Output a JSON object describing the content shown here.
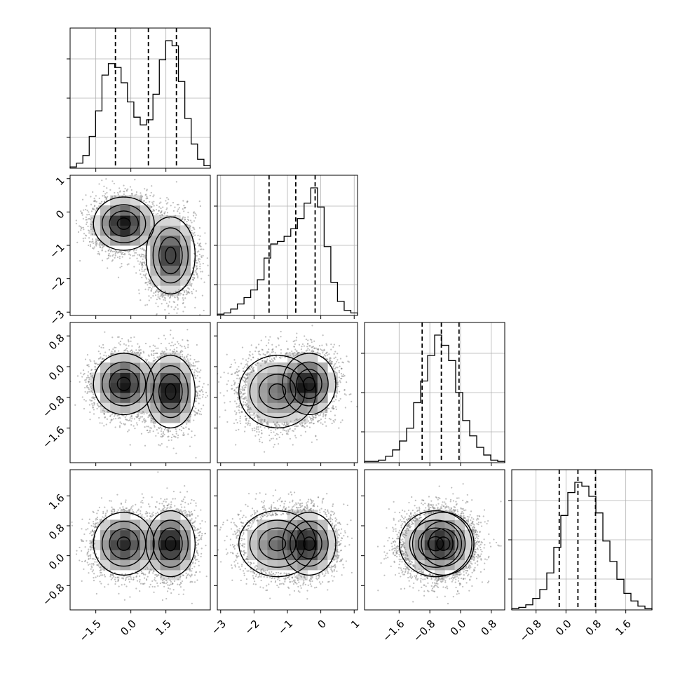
{
  "chart_data": {
    "type": "corner",
    "grid": true,
    "colors": {
      "hist": "#000000",
      "quantile": "#000000",
      "density": "#000000",
      "grid": "#b0b0b0",
      "points": "#7f7f7f"
    },
    "params": [
      {
        "range": [
          -2.6,
          3.4
        ],
        "xticks": [
          "-1.5",
          "0.0",
          "1.5"
        ],
        "yticks": [],
        "tick_values": [
          -1.5,
          0.0,
          1.5
        ],
        "quantiles": [
          -0.66,
          0.75,
          1.95
        ]
      },
      {
        "range": [
          -3.1,
          1.1
        ],
        "xticks": [
          "-3",
          "-2",
          "-1",
          "0",
          "1"
        ],
        "yticks": [
          "1",
          "0",
          "-1",
          "-2",
          "-3"
        ],
        "tick_values": [
          -3,
          -2,
          -1,
          0,
          1
        ],
        "quantiles": [
          -1.55,
          -0.75,
          -0.17
        ]
      },
      {
        "range": [
          -2.5,
          1.15
        ],
        "xticks": [
          "-1.6",
          "-0.8",
          "0.0",
          "0.8"
        ],
        "yticks": [
          "0.8",
          "0.0",
          "-0.8",
          "-1.6"
        ],
        "tick_values": [
          -1.6,
          -0.8,
          0.0,
          0.8
        ],
        "quantiles": [
          -1.0,
          -0.5,
          -0.04
        ]
      },
      {
        "range": [
          -1.45,
          2.3
        ],
        "xticks": [
          "-0.8",
          "0.0",
          "0.8",
          "1.6"
        ],
        "yticks": [
          "1.6",
          "0.8",
          "0.0",
          "-0.8"
        ],
        "tick_values": [
          -0.8,
          0.0,
          0.8,
          1.6
        ],
        "quantiles": [
          -0.18,
          0.32,
          0.79
        ]
      }
    ],
    "histograms": [
      {
        "counts": [
          0.01,
          0.04,
          0.1,
          0.25,
          0.45,
          0.73,
          0.82,
          0.79,
          0.67,
          0.52,
          0.4,
          0.34,
          0.38,
          0.58,
          0.85,
          1.0,
          0.96,
          0.68,
          0.39,
          0.19,
          0.07,
          0.02
        ]
      },
      {
        "counts": [
          0.01,
          0.02,
          0.05,
          0.09,
          0.14,
          0.2,
          0.28,
          0.45,
          0.56,
          0.58,
          0.62,
          0.68,
          0.76,
          0.88,
          1.0,
          0.85,
          0.54,
          0.26,
          0.11,
          0.04,
          0.02
        ]
      },
      {
        "counts": [
          0.01,
          0.01,
          0.02,
          0.05,
          0.1,
          0.17,
          0.27,
          0.47,
          0.64,
          0.84,
          1.0,
          0.92,
          0.8,
          0.55,
          0.33,
          0.21,
          0.12,
          0.06,
          0.02,
          0.01
        ]
      },
      {
        "counts": [
          0.01,
          0.02,
          0.04,
          0.09,
          0.16,
          0.29,
          0.49,
          0.74,
          0.92,
          1.0,
          0.97,
          0.89,
          0.76,
          0.54,
          0.38,
          0.24,
          0.13,
          0.07,
          0.03,
          0.01
        ]
      }
    ],
    "clusters": [
      {
        "weight": 0.5,
        "mean": [
          -0.3,
          -0.35,
          -0.45,
          0.32
        ],
        "sd": [
          0.62,
          0.38,
          0.38,
          0.4
        ]
      },
      {
        "weight": 0.5,
        "mean": [
          1.7,
          -1.3,
          -0.65,
          0.32
        ],
        "sd": [
          0.5,
          0.55,
          0.45,
          0.42
        ]
      }
    ]
  }
}
